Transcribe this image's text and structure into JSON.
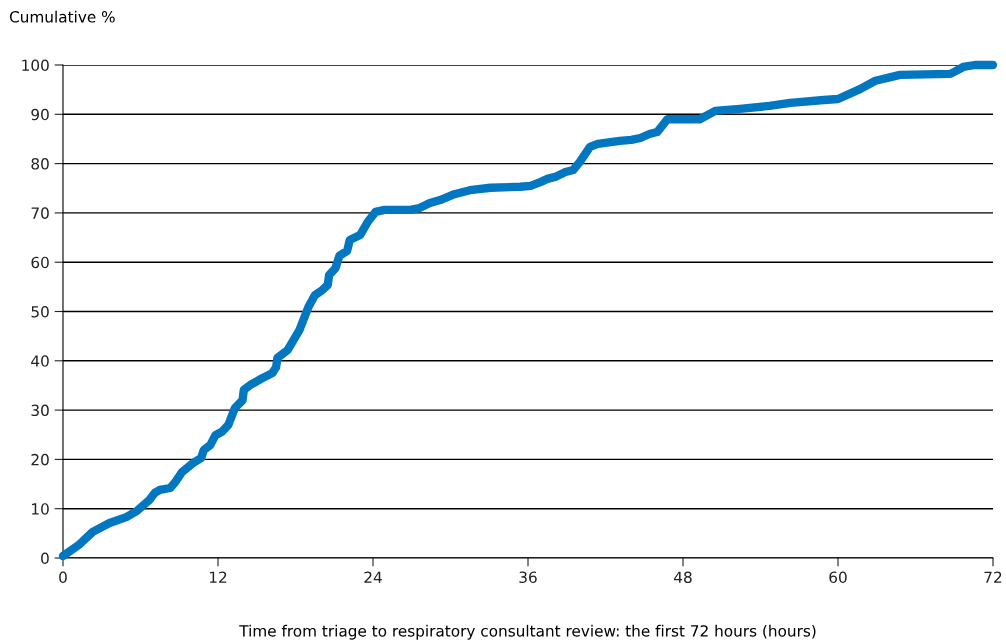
{
  "chart_data": {
    "type": "line",
    "xlabel": "Time from triage to respiratory consultant review: the first 72 hours (hours)",
    "ylabel": "Cumulative %",
    "xlim": [
      0,
      72
    ],
    "xticks": [
      0,
      12,
      24,
      36,
      48,
      60,
      72
    ],
    "ylim": [
      0,
      100
    ],
    "yticks": [
      0,
      10,
      20,
      30,
      40,
      50,
      60,
      70,
      80,
      90,
      100
    ],
    "grid": "y",
    "marker": "none",
    "line_style": "solid",
    "series": [
      {
        "color": "#0077c0",
        "x": [
          0,
          1.2,
          2.3,
          3.6,
          4.9,
          5.7,
          6.7,
          7.1,
          7.5,
          8.3,
          8.7,
          9.2,
          10.1,
          10.7,
          10.9,
          11.4,
          11.8,
          12.3,
          12.8,
          13.3,
          13.9,
          14.0,
          14.5,
          15.3,
          16.2,
          16.5,
          16.6,
          17.4,
          18.3,
          19.0,
          19.5,
          20.1,
          20.5,
          20.6,
          21.1,
          21.4,
          22.0,
          22.2,
          23.0,
          23.6,
          24.2,
          24.9,
          26.9,
          27.6,
          28.4,
          29.2,
          30.3,
          31.5,
          33.1,
          35.4,
          36.2,
          37.0,
          37.5,
          38.1,
          38.9,
          39.5,
          40.0,
          40.8,
          41.4,
          43.1,
          44.0,
          44.7,
          45.4,
          46.0,
          46.8,
          49.3,
          50.5,
          52.4,
          54.7,
          56.3,
          58.9,
          60.0,
          61.7,
          62.9,
          64.8,
          68.7,
          69.0,
          69.7,
          70.6,
          72
        ],
        "values": [
          0.4,
          2.6,
          5.3,
          7.1,
          8.3,
          9.5,
          11.8,
          13.2,
          13.8,
          14.2,
          15.4,
          17.4,
          19.3,
          20.3,
          21.9,
          22.9,
          24.9,
          25.6,
          27.0,
          30.4,
          32.0,
          34.1,
          35.1,
          36.3,
          37.5,
          38.7,
          40.6,
          42.2,
          46.2,
          50.9,
          53.3,
          54.4,
          55.4,
          57.4,
          58.8,
          61.3,
          62.3,
          64.5,
          65.5,
          68.2,
          70.2,
          70.6,
          70.6,
          71.0,
          72.0,
          72.6,
          73.8,
          74.6,
          75.1,
          75.3,
          75.5,
          76.3,
          76.9,
          77.3,
          78.3,
          78.7,
          80.3,
          83.4,
          84.0,
          84.6,
          84.8,
          85.2,
          86.0,
          86.4,
          89.0,
          89.0,
          90.7,
          91.1,
          91.7,
          92.3,
          92.9,
          93.1,
          95.1,
          96.8,
          98.0,
          98.2,
          98.6,
          99.6,
          100,
          100
        ]
      }
    ]
  }
}
